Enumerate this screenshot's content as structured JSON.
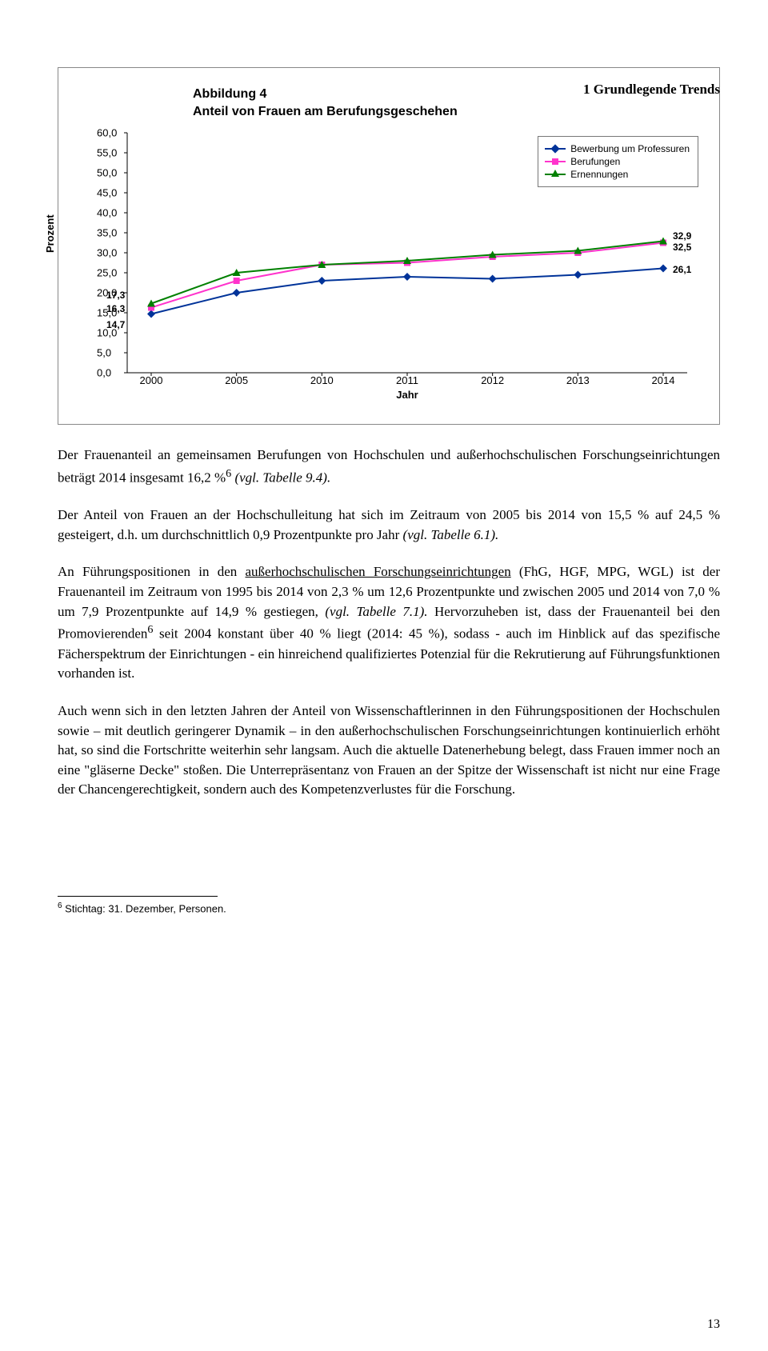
{
  "header": {
    "section_title": "1 Grundlegende Trends"
  },
  "chart": {
    "title_line1": "Abbildung 4",
    "title_line2": "Anteil von Frauen am Berufungsgeschehen",
    "ylabel": "Prozent",
    "xlabel": "Jahr",
    "ylim": [
      0,
      60
    ],
    "ytick_step": 5,
    "categories": [
      "2000",
      "2005",
      "2010",
      "2011",
      "2012",
      "2013",
      "2014"
    ],
    "series": [
      {
        "name": "Bewerbung um Professuren",
        "color": "#003399",
        "marker": "diamond",
        "values": [
          14.7,
          20.0,
          23.0,
          24.0,
          23.5,
          24.5,
          26.1
        ]
      },
      {
        "name": "Berufungen",
        "color": "#ff33cc",
        "marker": "square",
        "values": [
          16.3,
          23.0,
          27.0,
          27.5,
          29.0,
          30.0,
          32.5
        ]
      },
      {
        "name": "Ernennungen",
        "color": "#008000",
        "marker": "triangle",
        "values": [
          17.3,
          25.0,
          27.0,
          28.0,
          29.5,
          30.5,
          32.9
        ]
      }
    ],
    "start_labels": [
      {
        "text": "17,3",
        "series": 2
      },
      {
        "text": "16,3",
        "series": 1
      },
      {
        "text": "14,7",
        "series": 0
      }
    ],
    "end_labels": [
      {
        "text": "32,9",
        "series": 2
      },
      {
        "text": "32,5",
        "series": 1
      },
      {
        "text": "26,1",
        "series": 0
      }
    ],
    "legend_items": [
      "Bewerbung um Professuren",
      "Berufungen",
      "Ernennungen"
    ],
    "background_color": "#ffffff",
    "axis_color": "#000000"
  },
  "paragraphs": {
    "p1": "Der Frauenanteil an gemeinsamen Berufungen von Hochschulen und außerhochschulischen Forschungseinrichtungen beträgt 2014 insgesamt 16,2 %",
    "p1_tail": " (vgl. Tabelle 9.4).",
    "p2a": "Der Anteil von Frauen an der Hochschulleitung hat sich im Zeitraum von 2005 bis 2014 von 15,5 % auf 24,5 % gesteigert, d.h. um durchschnittlich 0,9 Prozentpunkte pro Jahr ",
    "p2_tail": "(vgl. Tabelle  6.1).",
    "p3a": "An Führungspositionen in den ",
    "p3_u": "außerhochschulischen Forschungseinrichtungen",
    "p3b": " (FhG, HGF, MPG, WGL) ist der Frauenanteil im Zeitraum von 1995 bis 2014 von 2,3 % um 12,6 Prozentpunkte und zwischen 2005 und 2014 von 7,0 % um 7,9 Prozentpunkte auf 14,9 % gestiegen, ",
    "p3_it": "(vgl. Tabelle 7.1).",
    "p3c": " Hervorzuheben ist, dass der Frauenanteil bei den Promovierenden",
    "p3d": " seit 2004 konstant über 40 % liegt (2014: 45 %), sodass - auch im Hinblick auf das spezifische Fächerspektrum der Einrichtungen - ein hinreichend qualifiziertes Potenzial für die Rekrutierung auf Führungsfunktionen vorhanden ist.",
    "p4": "Auch wenn sich in den letzten Jahren der Anteil von Wissenschaftlerinnen in den Führungspositionen der Hochschulen sowie – mit deutlich geringerer Dynamik – in den außerhochschulischen Forschungseinrichtungen kontinuierlich erhöht hat, so sind die Fortschritte weiterhin sehr langsam. Auch die aktuelle Datenerhebung belegt, dass Frauen immer noch an eine \"gläserne Decke\" stoßen. Die Unterrepräsentanz von Frauen an der Spitze der Wissenschaft ist nicht nur eine Frage der Chancengerechtigkeit, sondern auch des Kompetenzverlustes für die Forschung."
  },
  "footnote": {
    "num": "6",
    "text": " Stichtag: 31. Dezember, Personen."
  },
  "pagenum": "13",
  "sup6": "6"
}
